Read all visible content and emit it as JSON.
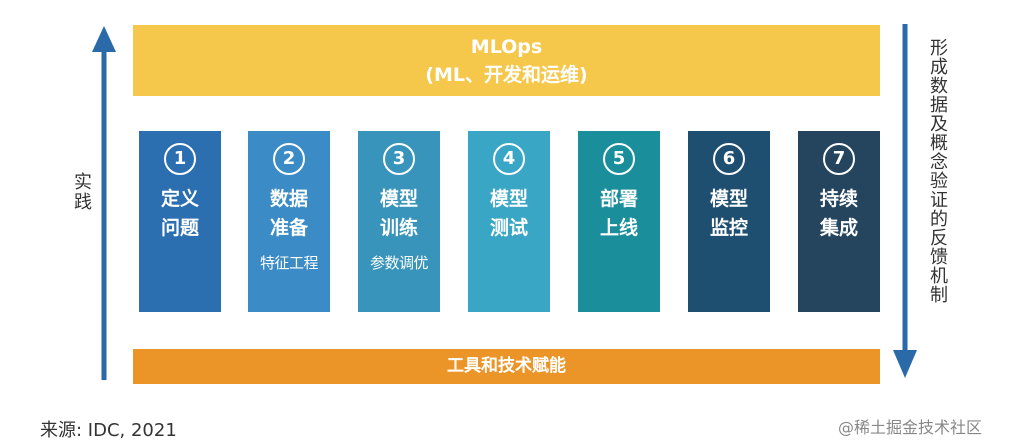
{
  "top_bar": {
    "title": "MLOps",
    "subtitle": "(ML、开发和运维)"
  },
  "steps": [
    {
      "num": "1",
      "line1": "定义",
      "line2": "问题",
      "sub": "",
      "color": "#2b6fb0"
    },
    {
      "num": "2",
      "line1": "数据",
      "line2": "准备",
      "sub": "特征工程",
      "color": "#3a8bc6"
    },
    {
      "num": "3",
      "line1": "模型",
      "line2": "训练",
      "sub": "参数调优",
      "color": "#3894ba"
    },
    {
      "num": "4",
      "line1": "模型",
      "line2": "测试",
      "sub": "",
      "color": "#3aa6c6"
    },
    {
      "num": "5",
      "line1": "部署",
      "line2": "上线",
      "sub": "",
      "color": "#1a8f9b"
    },
    {
      "num": "6",
      "line1": "模型",
      "line2": "监控",
      "sub": "",
      "color": "#1e4f71"
    },
    {
      "num": "7",
      "line1": "持续",
      "line2": "集成",
      "sub": "",
      "color": "#25455f"
    }
  ],
  "bottom_bar": {
    "label": "工具和技术赋能"
  },
  "left_label": "实践",
  "right_label": "形成数据及概念验证的反馈机制",
  "arrow_color": "#2a6aa8",
  "footer": "来源: IDC, 2021",
  "watermark": "@稀土掘金技术社区"
}
